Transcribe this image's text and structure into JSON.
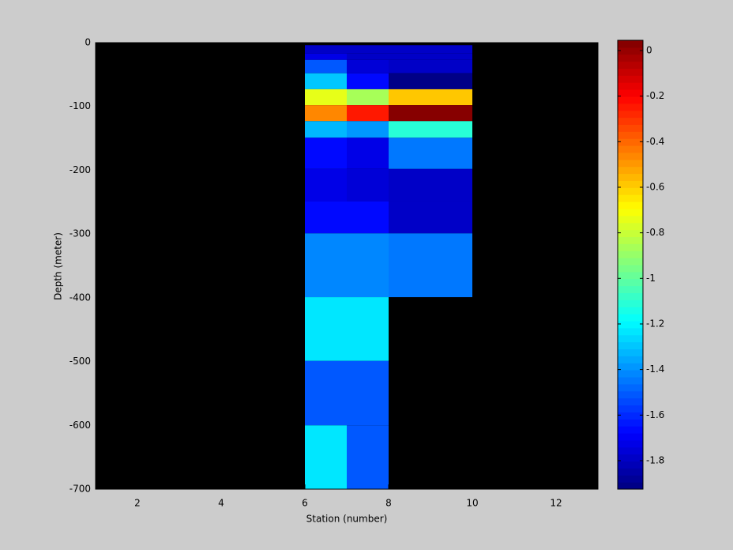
{
  "chart_data": {
    "type": "heatmap",
    "xlabel": "Station (number)",
    "ylabel": "Depth (meter)",
    "x_edges": [
      6,
      7,
      8,
      10
    ],
    "y_edges": [
      -4,
      -17,
      -27,
      -48,
      -73,
      -98,
      -123,
      -149,
      -198,
      -249,
      -299,
      -399,
      -499,
      -600,
      -700
    ],
    "values": [
      [
        -1.8,
        -1.78,
        -1.8
      ],
      [
        -1.72,
        -1.8,
        -1.8
      ],
      [
        -1.52,
        -1.77,
        -1.8
      ],
      [
        -1.3,
        -1.65,
        -1.9
      ],
      [
        -0.75,
        -0.85,
        -0.6
      ],
      [
        -0.45,
        -0.25,
        0.02
      ],
      [
        -1.32,
        -1.4,
        -1.1
      ],
      [
        -1.65,
        -1.72,
        -1.45
      ],
      [
        -1.72,
        -1.76,
        -1.8
      ],
      [
        -1.67,
        -1.67,
        -1.8
      ],
      [
        -1.42,
        -1.42,
        -1.45
      ],
      [
        -1.22,
        -1.22,
        null
      ],
      [
        -1.52,
        -1.52,
        null
      ],
      [
        -1.22,
        -1.52,
        null
      ]
    ],
    "xlim": [
      1,
      13
    ],
    "xticks": [
      2,
      4,
      6,
      8,
      10,
      12
    ],
    "ylim": [
      -700,
      0
    ],
    "yticks": [
      0,
      -100,
      -200,
      -300,
      -400,
      -500,
      -600,
      -700
    ],
    "clim": [
      -1.925,
      0.045
    ],
    "cticks": [
      0,
      -0.2,
      -0.4,
      -0.6,
      -0.8,
      -1,
      -1.2,
      -1.4,
      -1.6,
      -1.8
    ],
    "colormap": "jet",
    "colormap_levels": 64,
    "background": "#000000"
  }
}
